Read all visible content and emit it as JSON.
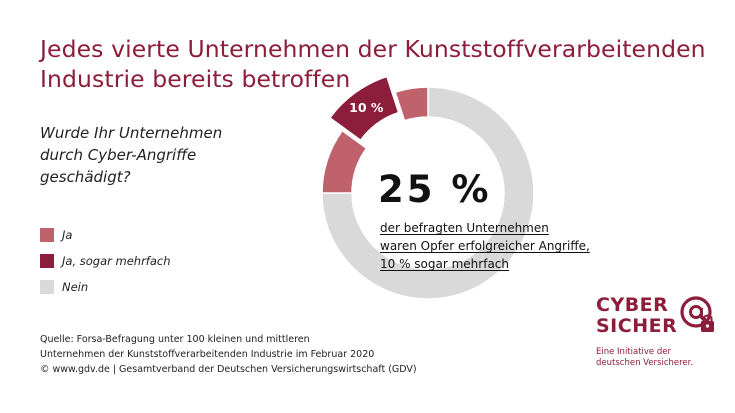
{
  "title_lines": [
    "Jedes vierte Unternehmen der Kunststoffverarbeitenden",
    "Industrie bereits betroffen"
  ],
  "question_lines": [
    "Wurde Ihr Unternehmen",
    "durch Cyber-Angriffe",
    "geschädigt?"
  ],
  "legend": [
    {
      "label": "Ja",
      "color": "#c0626b"
    },
    {
      "label": "Ja, sogar mehrfach",
      "color": "#8c1d3b"
    },
    {
      "label": "Nein",
      "color": "#d9d9d9"
    }
  ],
  "chart_data": {
    "type": "pie",
    "variant": "donut",
    "slices": [
      {
        "label": "Ja",
        "value": 15,
        "color": "#c0626b"
      },
      {
        "label": "Ja, sogar mehrfach",
        "value": 10,
        "color": "#8c1d3b"
      },
      {
        "label": "Nein",
        "value": 75,
        "color": "#d9d9d9"
      }
    ],
    "data_labels": {
      "Ja, sogar mehrfach": "10 %"
    }
  },
  "headline_value": "25 %",
  "description_lines": [
    "der befragten Unternehmen",
    "waren Opfer erfolgreicher Angriffe,",
    "10 % sogar mehrfach"
  ],
  "source_lines": [
    "Quelle: Forsa-Befragung unter 100 kleinen und mittleren",
    "Unternehmen der Kunststoffverarbeitenden Industrie im Februar 2020",
    "© www.gdv.de | Gesamtverband der Deutschen Versicherungswirtschaft (GDV)"
  ],
  "logo": {
    "line1": "CYBER",
    "line2": "SICHER",
    "tagline": [
      "Eine Initiative der",
      "deutschen Versicherer."
    ],
    "icon": "at-lock-icon"
  },
  "colors": {
    "brand": "#8c1d3b",
    "ja": "#c0626b",
    "nein": "#d9d9d9"
  }
}
